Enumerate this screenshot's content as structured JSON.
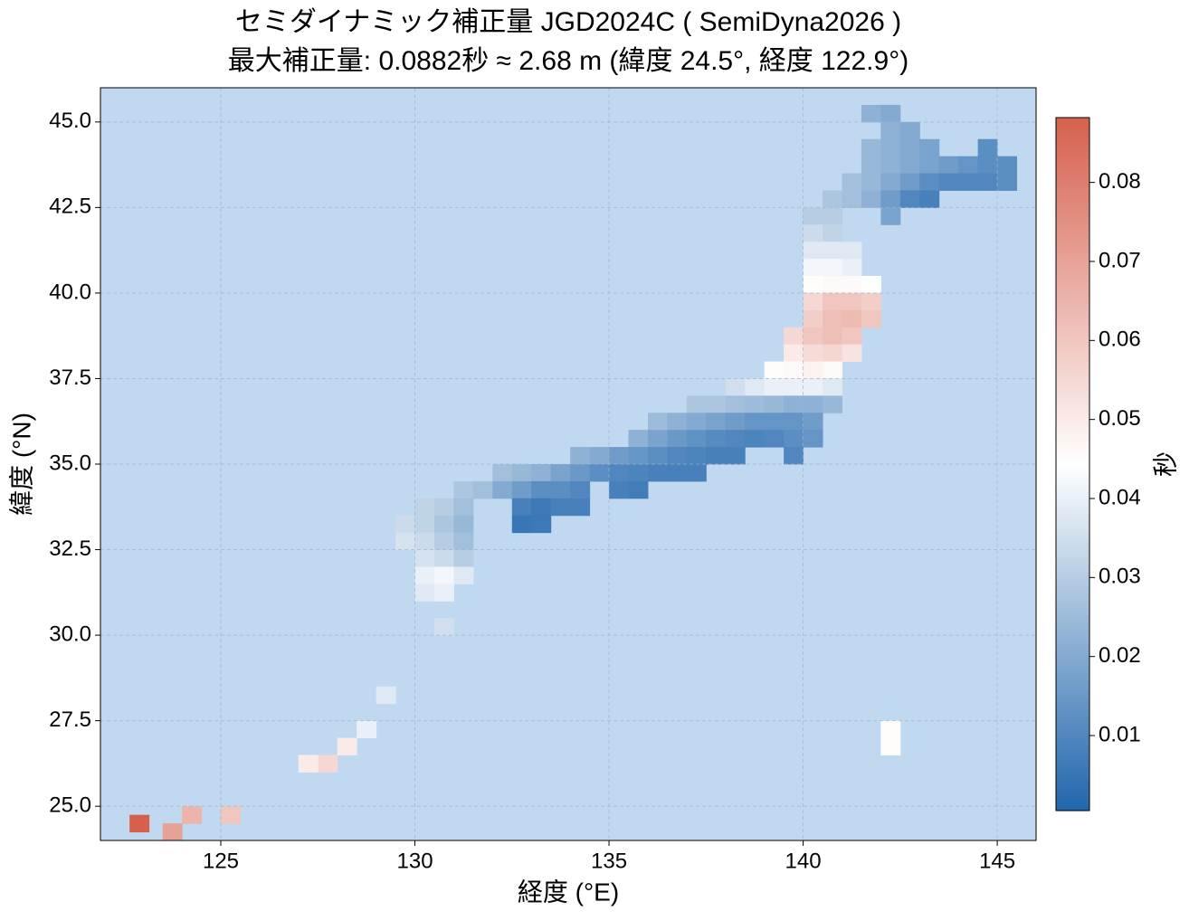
{
  "chart_data": {
    "type": "heatmap",
    "title": "セミダイナミック補正量 JGD2024C ( SemiDyna2026 )",
    "subtitle": "最大補正量: 0.0882秒 ≈ 2.68 m  (緯度 24.5°, 経度 122.9°)",
    "xlabel": "経度 (°E)",
    "ylabel": "緯度 (°N)",
    "colorbar_label": "秒",
    "background": "#c0d9f1",
    "colormap": [
      "#2166ac",
      "#ffffff",
      "#d6604d"
    ],
    "grid": true,
    "xlim": [
      121.9,
      146
    ],
    "ylim": [
      24,
      46
    ],
    "clim": [
      0.0005,
      0.0882
    ],
    "xticks": [
      125,
      130,
      135,
      140,
      145
    ],
    "yticks": [
      {
        "value": 25,
        "label": "25.0"
      },
      {
        "value": 27.5,
        "label": "27.5"
      },
      {
        "value": 30,
        "label": "30.0"
      },
      {
        "value": 32.5,
        "label": "32.5"
      },
      {
        "value": 35,
        "label": "35.0"
      },
      {
        "value": 37.5,
        "label": "37.5"
      },
      {
        "value": 40,
        "label": "40.0"
      },
      {
        "value": 42.5,
        "label": "42.5"
      },
      {
        "value": 45,
        "label": "45.0"
      }
    ],
    "cticks": [
      0.01,
      0.02,
      0.03,
      0.04,
      0.05,
      0.06,
      0.07,
      0.08
    ],
    "cells": [
      {
        "x": 141.75,
        "y": 45.25,
        "value": 0.022
      },
      {
        "x": 142.25,
        "y": 45.25,
        "value": 0.02
      },
      {
        "x": 142.25,
        "y": 44.75,
        "value": 0.022
      },
      {
        "x": 142.75,
        "y": 44.75,
        "value": 0.02
      },
      {
        "x": 141.75,
        "y": 44.25,
        "value": 0.024
      },
      {
        "x": 142.25,
        "y": 44.25,
        "value": 0.022
      },
      {
        "x": 142.75,
        "y": 44.25,
        "value": 0.02
      },
      {
        "x": 143.25,
        "y": 44.25,
        "value": 0.018
      },
      {
        "x": 144.75,
        "y": 44.25,
        "value": 0.012
      },
      {
        "x": 141.75,
        "y": 43.75,
        "value": 0.024
      },
      {
        "x": 142.25,
        "y": 43.75,
        "value": 0.022
      },
      {
        "x": 142.75,
        "y": 43.75,
        "value": 0.02
      },
      {
        "x": 143.25,
        "y": 43.75,
        "value": 0.018
      },
      {
        "x": 143.75,
        "y": 43.75,
        "value": 0.016
      },
      {
        "x": 144.25,
        "y": 43.75,
        "value": 0.014
      },
      {
        "x": 144.75,
        "y": 43.75,
        "value": 0.012
      },
      {
        "x": 145.25,
        "y": 43.75,
        "value": 0.012
      },
      {
        "x": 141.25,
        "y": 43.25,
        "value": 0.026
      },
      {
        "x": 141.75,
        "y": 43.25,
        "value": 0.024
      },
      {
        "x": 142.25,
        "y": 43.25,
        "value": 0.02
      },
      {
        "x": 142.75,
        "y": 43.25,
        "value": 0.016
      },
      {
        "x": 143.25,
        "y": 43.25,
        "value": 0.012
      },
      {
        "x": 143.75,
        "y": 43.25,
        "value": 0.01
      },
      {
        "x": 144.25,
        "y": 43.25,
        "value": 0.01
      },
      {
        "x": 144.75,
        "y": 43.25,
        "value": 0.01
      },
      {
        "x": 145.25,
        "y": 43.25,
        "value": 0.012
      },
      {
        "x": 140.75,
        "y": 42.75,
        "value": 0.028
      },
      {
        "x": 141.25,
        "y": 42.75,
        "value": 0.026
      },
      {
        "x": 141.75,
        "y": 42.75,
        "value": 0.022
      },
      {
        "x": 142.25,
        "y": 42.75,
        "value": 0.016
      },
      {
        "x": 142.75,
        "y": 42.75,
        "value": 0.01
      },
      {
        "x": 143.25,
        "y": 42.75,
        "value": 0.008
      },
      {
        "x": 140.25,
        "y": 42.25,
        "value": 0.03
      },
      {
        "x": 140.75,
        "y": 42.25,
        "value": 0.03
      },
      {
        "x": 142.25,
        "y": 42.25,
        "value": 0.018
      },
      {
        "x": 140.25,
        "y": 41.75,
        "value": 0.034
      },
      {
        "x": 140.75,
        "y": 41.75,
        "value": 0.032
      },
      {
        "x": 140.25,
        "y": 41.25,
        "value": 0.038
      },
      {
        "x": 140.75,
        "y": 41.25,
        "value": 0.038
      },
      {
        "x": 141.25,
        "y": 41.25,
        "value": 0.038
      },
      {
        "x": 140.25,
        "y": 40.75,
        "value": 0.042
      },
      {
        "x": 140.75,
        "y": 40.75,
        "value": 0.042
      },
      {
        "x": 141.25,
        "y": 40.75,
        "value": 0.04
      },
      {
        "x": 140.25,
        "y": 40.25,
        "value": 0.045
      },
      {
        "x": 140.75,
        "y": 40.25,
        "value": 0.046
      },
      {
        "x": 141.25,
        "y": 40.25,
        "value": 0.046
      },
      {
        "x": 141.75,
        "y": 40.25,
        "value": 0.044
      },
      {
        "x": 140.25,
        "y": 39.75,
        "value": 0.055
      },
      {
        "x": 140.75,
        "y": 39.75,
        "value": 0.06
      },
      {
        "x": 141.25,
        "y": 39.75,
        "value": 0.06
      },
      {
        "x": 141.75,
        "y": 39.75,
        "value": 0.058
      },
      {
        "x": 140.25,
        "y": 39.25,
        "value": 0.058
      },
      {
        "x": 140.75,
        "y": 39.25,
        "value": 0.062
      },
      {
        "x": 141.25,
        "y": 39.25,
        "value": 0.063
      },
      {
        "x": 141.75,
        "y": 39.25,
        "value": 0.06
      },
      {
        "x": 139.75,
        "y": 38.75,
        "value": 0.055
      },
      {
        "x": 140.25,
        "y": 38.75,
        "value": 0.06
      },
      {
        "x": 140.75,
        "y": 38.75,
        "value": 0.062
      },
      {
        "x": 141.25,
        "y": 38.75,
        "value": 0.06
      },
      {
        "x": 139.75,
        "y": 38.25,
        "value": 0.05
      },
      {
        "x": 140.25,
        "y": 38.25,
        "value": 0.054
      },
      {
        "x": 140.75,
        "y": 38.25,
        "value": 0.056
      },
      {
        "x": 141.25,
        "y": 38.25,
        "value": 0.052
      },
      {
        "x": 139.25,
        "y": 37.75,
        "value": 0.045
      },
      {
        "x": 139.75,
        "y": 37.75,
        "value": 0.046
      },
      {
        "x": 140.25,
        "y": 37.75,
        "value": 0.048
      },
      {
        "x": 140.75,
        "y": 37.75,
        "value": 0.046
      },
      {
        "x": 138.25,
        "y": 37.25,
        "value": 0.035
      },
      {
        "x": 138.75,
        "y": 37.25,
        "value": 0.038
      },
      {
        "x": 139.25,
        "y": 37.25,
        "value": 0.04
      },
      {
        "x": 139.75,
        "y": 37.25,
        "value": 0.04
      },
      {
        "x": 140.25,
        "y": 37.25,
        "value": 0.04
      },
      {
        "x": 140.75,
        "y": 37.25,
        "value": 0.038
      },
      {
        "x": 137.25,
        "y": 36.75,
        "value": 0.028
      },
      {
        "x": 137.75,
        "y": 36.75,
        "value": 0.028
      },
      {
        "x": 138.25,
        "y": 36.75,
        "value": 0.026
      },
      {
        "x": 138.75,
        "y": 36.75,
        "value": 0.025
      },
      {
        "x": 139.25,
        "y": 36.75,
        "value": 0.024
      },
      {
        "x": 139.75,
        "y": 36.75,
        "value": 0.022
      },
      {
        "x": 140.25,
        "y": 36.75,
        "value": 0.022
      },
      {
        "x": 140.75,
        "y": 36.75,
        "value": 0.024
      },
      {
        "x": 136.25,
        "y": 36.25,
        "value": 0.025
      },
      {
        "x": 136.75,
        "y": 36.25,
        "value": 0.022
      },
      {
        "x": 137.25,
        "y": 36.25,
        "value": 0.02
      },
      {
        "x": 137.75,
        "y": 36.25,
        "value": 0.018
      },
      {
        "x": 138.25,
        "y": 36.25,
        "value": 0.016
      },
      {
        "x": 138.75,
        "y": 36.25,
        "value": 0.014
      },
      {
        "x": 139.25,
        "y": 36.25,
        "value": 0.014
      },
      {
        "x": 139.75,
        "y": 36.25,
        "value": 0.014
      },
      {
        "x": 140.25,
        "y": 36.25,
        "value": 0.016
      },
      {
        "x": 135.75,
        "y": 35.75,
        "value": 0.022
      },
      {
        "x": 136.25,
        "y": 35.75,
        "value": 0.018
      },
      {
        "x": 136.75,
        "y": 35.75,
        "value": 0.015
      },
      {
        "x": 137.25,
        "y": 35.75,
        "value": 0.013
      },
      {
        "x": 137.75,
        "y": 35.75,
        "value": 0.011
      },
      {
        "x": 138.25,
        "y": 35.75,
        "value": 0.01
      },
      {
        "x": 138.75,
        "y": 35.75,
        "value": 0.009
      },
      {
        "x": 139.25,
        "y": 35.75,
        "value": 0.01
      },
      {
        "x": 139.75,
        "y": 35.75,
        "value": 0.012
      },
      {
        "x": 140.25,
        "y": 35.75,
        "value": 0.014
      },
      {
        "x": 134.25,
        "y": 35.25,
        "value": 0.022
      },
      {
        "x": 134.75,
        "y": 35.25,
        "value": 0.02
      },
      {
        "x": 135.25,
        "y": 35.25,
        "value": 0.016
      },
      {
        "x": 135.75,
        "y": 35.25,
        "value": 0.014
      },
      {
        "x": 136.25,
        "y": 35.25,
        "value": 0.012
      },
      {
        "x": 136.75,
        "y": 35.25,
        "value": 0.01
      },
      {
        "x": 137.25,
        "y": 35.25,
        "value": 0.009
      },
      {
        "x": 137.75,
        "y": 35.25,
        "value": 0.008
      },
      {
        "x": 138.25,
        "y": 35.25,
        "value": 0.008
      },
      {
        "x": 139.75,
        "y": 35.25,
        "value": 0.01
      },
      {
        "x": 132.25,
        "y": 34.75,
        "value": 0.026
      },
      {
        "x": 132.75,
        "y": 34.75,
        "value": 0.024
      },
      {
        "x": 133.25,
        "y": 34.75,
        "value": 0.022
      },
      {
        "x": 133.75,
        "y": 34.75,
        "value": 0.018
      },
      {
        "x": 134.25,
        "y": 34.75,
        "value": 0.015
      },
      {
        "x": 134.75,
        "y": 34.75,
        "value": 0.012
      },
      {
        "x": 135.25,
        "y": 34.75,
        "value": 0.01
      },
      {
        "x": 135.75,
        "y": 34.75,
        "value": 0.009
      },
      {
        "x": 136.25,
        "y": 34.75,
        "value": 0.008
      },
      {
        "x": 136.75,
        "y": 34.75,
        "value": 0.008
      },
      {
        "x": 137.25,
        "y": 34.75,
        "value": 0.008
      },
      {
        "x": 131.25,
        "y": 34.25,
        "value": 0.028
      },
      {
        "x": 131.75,
        "y": 34.25,
        "value": 0.026
      },
      {
        "x": 132.25,
        "y": 34.25,
        "value": 0.02
      },
      {
        "x": 132.75,
        "y": 34.25,
        "value": 0.016
      },
      {
        "x": 133.25,
        "y": 34.25,
        "value": 0.012
      },
      {
        "x": 133.75,
        "y": 34.25,
        "value": 0.012
      },
      {
        "x": 134.25,
        "y": 34.25,
        "value": 0.01
      },
      {
        "x": 135.25,
        "y": 34.25,
        "value": 0.008
      },
      {
        "x": 135.75,
        "y": 34.25,
        "value": 0.007
      },
      {
        "x": 130.25,
        "y": 33.75,
        "value": 0.032
      },
      {
        "x": 130.75,
        "y": 33.75,
        "value": 0.03
      },
      {
        "x": 131.25,
        "y": 33.75,
        "value": 0.026
      },
      {
        "x": 132.75,
        "y": 33.75,
        "value": 0.008
      },
      {
        "x": 133.25,
        "y": 33.75,
        "value": 0.006
      },
      {
        "x": 133.75,
        "y": 33.75,
        "value": 0.008
      },
      {
        "x": 134.25,
        "y": 33.75,
        "value": 0.008
      },
      {
        "x": 129.75,
        "y": 33.25,
        "value": 0.034
      },
      {
        "x": 130.25,
        "y": 33.25,
        "value": 0.032
      },
      {
        "x": 130.75,
        "y": 33.25,
        "value": 0.028
      },
      {
        "x": 131.25,
        "y": 33.25,
        "value": 0.024
      },
      {
        "x": 132.75,
        "y": 33.25,
        "value": 0.005
      },
      {
        "x": 133.25,
        "y": 33.25,
        "value": 0.006
      },
      {
        "x": 129.75,
        "y": 32.75,
        "value": 0.036
      },
      {
        "x": 130.25,
        "y": 32.75,
        "value": 0.034
      },
      {
        "x": 130.75,
        "y": 32.75,
        "value": 0.03
      },
      {
        "x": 131.25,
        "y": 32.75,
        "value": 0.026
      },
      {
        "x": 130.25,
        "y": 32.25,
        "value": 0.036
      },
      {
        "x": 130.75,
        "y": 32.25,
        "value": 0.034
      },
      {
        "x": 131.25,
        "y": 32.25,
        "value": 0.03
      },
      {
        "x": 130.25,
        "y": 31.75,
        "value": 0.04
      },
      {
        "x": 130.75,
        "y": 31.75,
        "value": 0.042
      },
      {
        "x": 131.25,
        "y": 31.75,
        "value": 0.038
      },
      {
        "x": 130.25,
        "y": 31.25,
        "value": 0.038
      },
      {
        "x": 130.75,
        "y": 31.25,
        "value": 0.04
      },
      {
        "x": 130.75,
        "y": 30.25,
        "value": 0.035
      },
      {
        "x": 129.25,
        "y": 28.25,
        "value": 0.038
      },
      {
        "x": 128.75,
        "y": 27.25,
        "value": 0.04
      },
      {
        "x": 128.25,
        "y": 26.75,
        "value": 0.05
      },
      {
        "x": 127.75,
        "y": 26.25,
        "value": 0.055
      },
      {
        "x": 127.25,
        "y": 26.25,
        "value": 0.05
      },
      {
        "x": 125.25,
        "y": 24.75,
        "value": 0.06
      },
      {
        "x": 124.25,
        "y": 24.75,
        "value": 0.065
      },
      {
        "x": 123.75,
        "y": 24.25,
        "value": 0.07
      },
      {
        "x": 122.9,
        "y": 24.5,
        "value": 0.0882
      },
      {
        "x": 142.25,
        "y": 27.25,
        "value": 0.045
      },
      {
        "x": 142.25,
        "y": 26.75,
        "value": 0.045
      }
    ]
  }
}
